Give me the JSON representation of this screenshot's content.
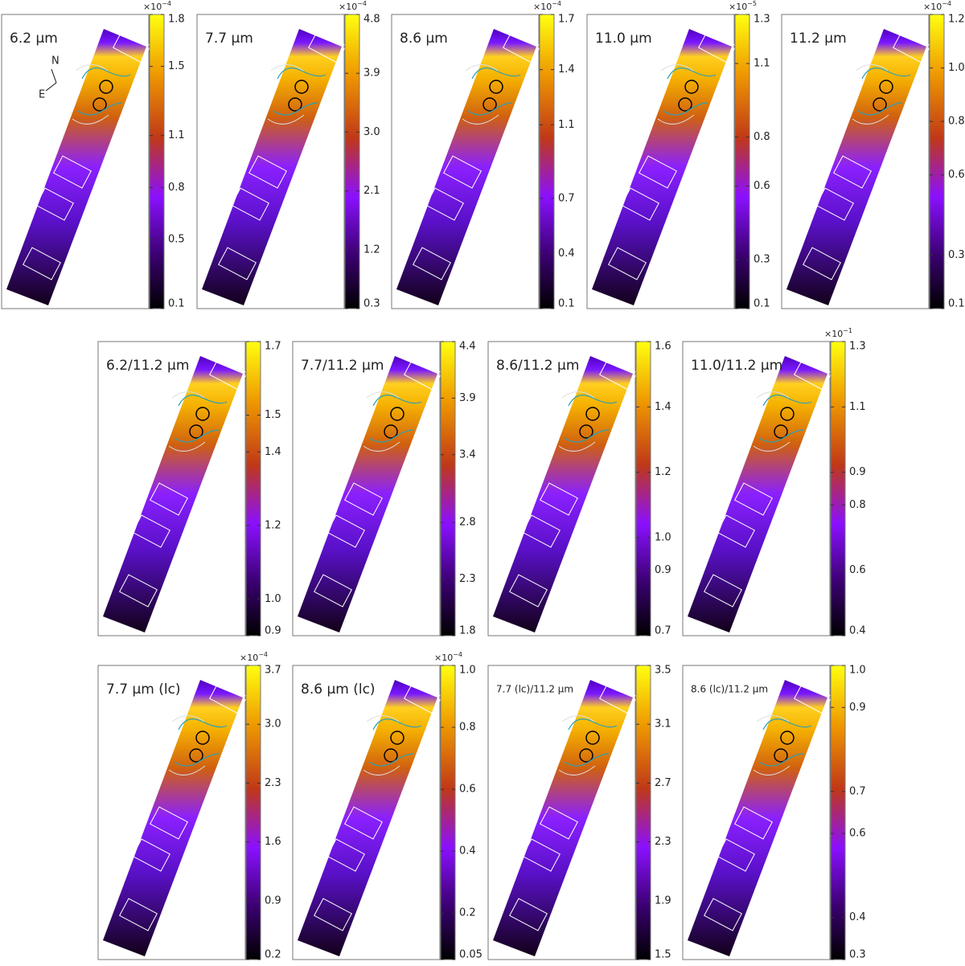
{
  "chart_data": [
    {
      "type": "heatmap",
      "title": "6.2 μm",
      "clim": [
        0.1,
        1.8
      ],
      "cticks": [
        0.1,
        0.5,
        0.8,
        1.1,
        1.5,
        1.8
      ],
      "scale_label": {
        "base": "×10",
        "exponent": "−4"
      },
      "compass": {
        "north": "N",
        "east": "E"
      }
    },
    {
      "type": "heatmap",
      "title": "7.7 μm",
      "clim": [
        0.3,
        4.8
      ],
      "cticks": [
        0.3,
        1.2,
        2.1,
        {
          "value": 3,
          "label": "3.0"
        },
        3.9,
        4.8
      ],
      "scale_label": {
        "base": "×10",
        "exponent": "−4"
      }
    },
    {
      "type": "heatmap",
      "title": "8.6 μm",
      "clim": [
        0.1,
        1.7
      ],
      "cticks": [
        0.1,
        0.4,
        0.7,
        1.1,
        1.4,
        1.7
      ],
      "scale_label": {
        "base": "×10",
        "exponent": "−4"
      }
    },
    {
      "type": "heatmap",
      "title": "11.0 μm",
      "clim": [
        0.1,
        1.3
      ],
      "cticks": [
        0.1,
        0.3,
        0.6,
        0.8,
        1.1,
        1.3
      ],
      "scale_label": {
        "base": "×10",
        "exponent": "−5"
      }
    },
    {
      "type": "heatmap",
      "title": "11.2 μm",
      "clim": [
        0.1,
        1.2
      ],
      "cticks": [
        0.1,
        0.3,
        0.6,
        0.8,
        {
          "value": 1,
          "label": "1.0"
        },
        1.2
      ],
      "scale_label": {
        "base": "×10",
        "exponent": "−4"
      }
    },
    {
      "type": "heatmap",
      "title": "6.2/11.2 μm",
      "clim": [
        0.9,
        1.7
      ],
      "cticks": [
        0.9,
        {
          "value": 1,
          "label": "1.0"
        },
        1.2,
        1.4,
        1.5,
        1.7
      ]
    },
    {
      "type": "heatmap",
      "title": "7.7/11.2 μm",
      "clim": [
        1.8,
        4.4
      ],
      "cticks": [
        1.8,
        2.3,
        2.8,
        3.4,
        3.9,
        4.4
      ]
    },
    {
      "type": "heatmap",
      "title": "8.6/11.2 μm",
      "clim": [
        0.7,
        1.6
      ],
      "cticks": [
        0.7,
        0.9,
        {
          "value": 1,
          "label": "1.0"
        },
        1.2,
        1.4,
        1.6
      ]
    },
    {
      "type": "heatmap",
      "title": "11.0/11.2 μm",
      "clim": [
        0.4,
        1.3
      ],
      "cticks": [
        0.4,
        0.6,
        0.8,
        0.9,
        1.1,
        1.3
      ],
      "scale_label": {
        "base": "×10",
        "exponent": "−1"
      }
    },
    {
      "type": "heatmap",
      "title": "7.7 μm (lc)",
      "clim": [
        0.2,
        3.7
      ],
      "cticks": [
        0.2,
        0.9,
        1.6,
        2.3,
        {
          "value": 3,
          "label": "3.0"
        },
        3.7
      ],
      "scale_label": {
        "base": "×10",
        "exponent": "−4"
      }
    },
    {
      "type": "heatmap",
      "title": "8.6 μm (lc)",
      "clim": [
        0.05,
        1
      ],
      "cticks": [
        0.05,
        0.2,
        0.4,
        0.6,
        0.8,
        {
          "value": 1,
          "label": "1.0"
        }
      ],
      "scale_label": {
        "base": "×10",
        "exponent": "−4"
      }
    },
    {
      "type": "heatmap",
      "title": "7.7 (lc)/11.2 μm",
      "clim": [
        1.5,
        3.5
      ],
      "cticks": [
        1.5,
        1.9,
        2.3,
        2.7,
        3.1,
        3.5
      ]
    },
    {
      "type": "heatmap",
      "title": "8.6 (lc)/11.2 μm",
      "clim": [
        0.3,
        1
      ],
      "cticks": [
        0.3,
        0.4,
        0.6,
        0.7,
        0.9,
        {
          "value": 1,
          "label": "1.0"
        }
      ]
    }
  ]
}
